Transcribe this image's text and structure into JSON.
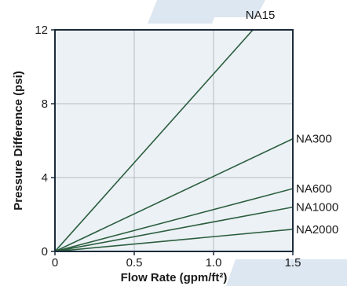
{
  "chart_data": {
    "type": "line",
    "title": "",
    "xlabel": "Flow Rate (gpm/ft²)",
    "ylabel": "Pressure Difference (psi)",
    "xlim": [
      0,
      1.5
    ],
    "ylim": [
      0,
      12
    ],
    "x_ticks": [
      "0",
      "0.5",
      "1.0",
      "1.5"
    ],
    "x_tick_values": [
      0,
      0.5,
      1.0,
      1.5
    ],
    "y_ticks": [
      "0",
      "4",
      "8",
      "12"
    ],
    "y_tick_values": [
      0,
      4,
      8,
      12
    ],
    "grid": true,
    "series": [
      {
        "name": "NA15",
        "x": [
          0,
          1.3
        ],
        "y": [
          0,
          12.5
        ]
      },
      {
        "name": "NA300",
        "x": [
          0,
          1.5
        ],
        "y": [
          0,
          6.1
        ]
      },
      {
        "name": "NA600",
        "x": [
          0,
          1.5
        ],
        "y": [
          0,
          3.4
        ]
      },
      {
        "name": "NA1000",
        "x": [
          0,
          1.5
        ],
        "y": [
          0,
          2.4
        ]
      },
      {
        "name": "NA2000",
        "x": [
          0,
          1.5
        ],
        "y": [
          0,
          1.2
        ]
      }
    ],
    "colors": {
      "plot_background": "#ecf1f5",
      "line": "#2b5e3e",
      "grid": "#b4bcc2",
      "frame": "#1c2b3a",
      "watermark": "#dde7f1"
    }
  }
}
